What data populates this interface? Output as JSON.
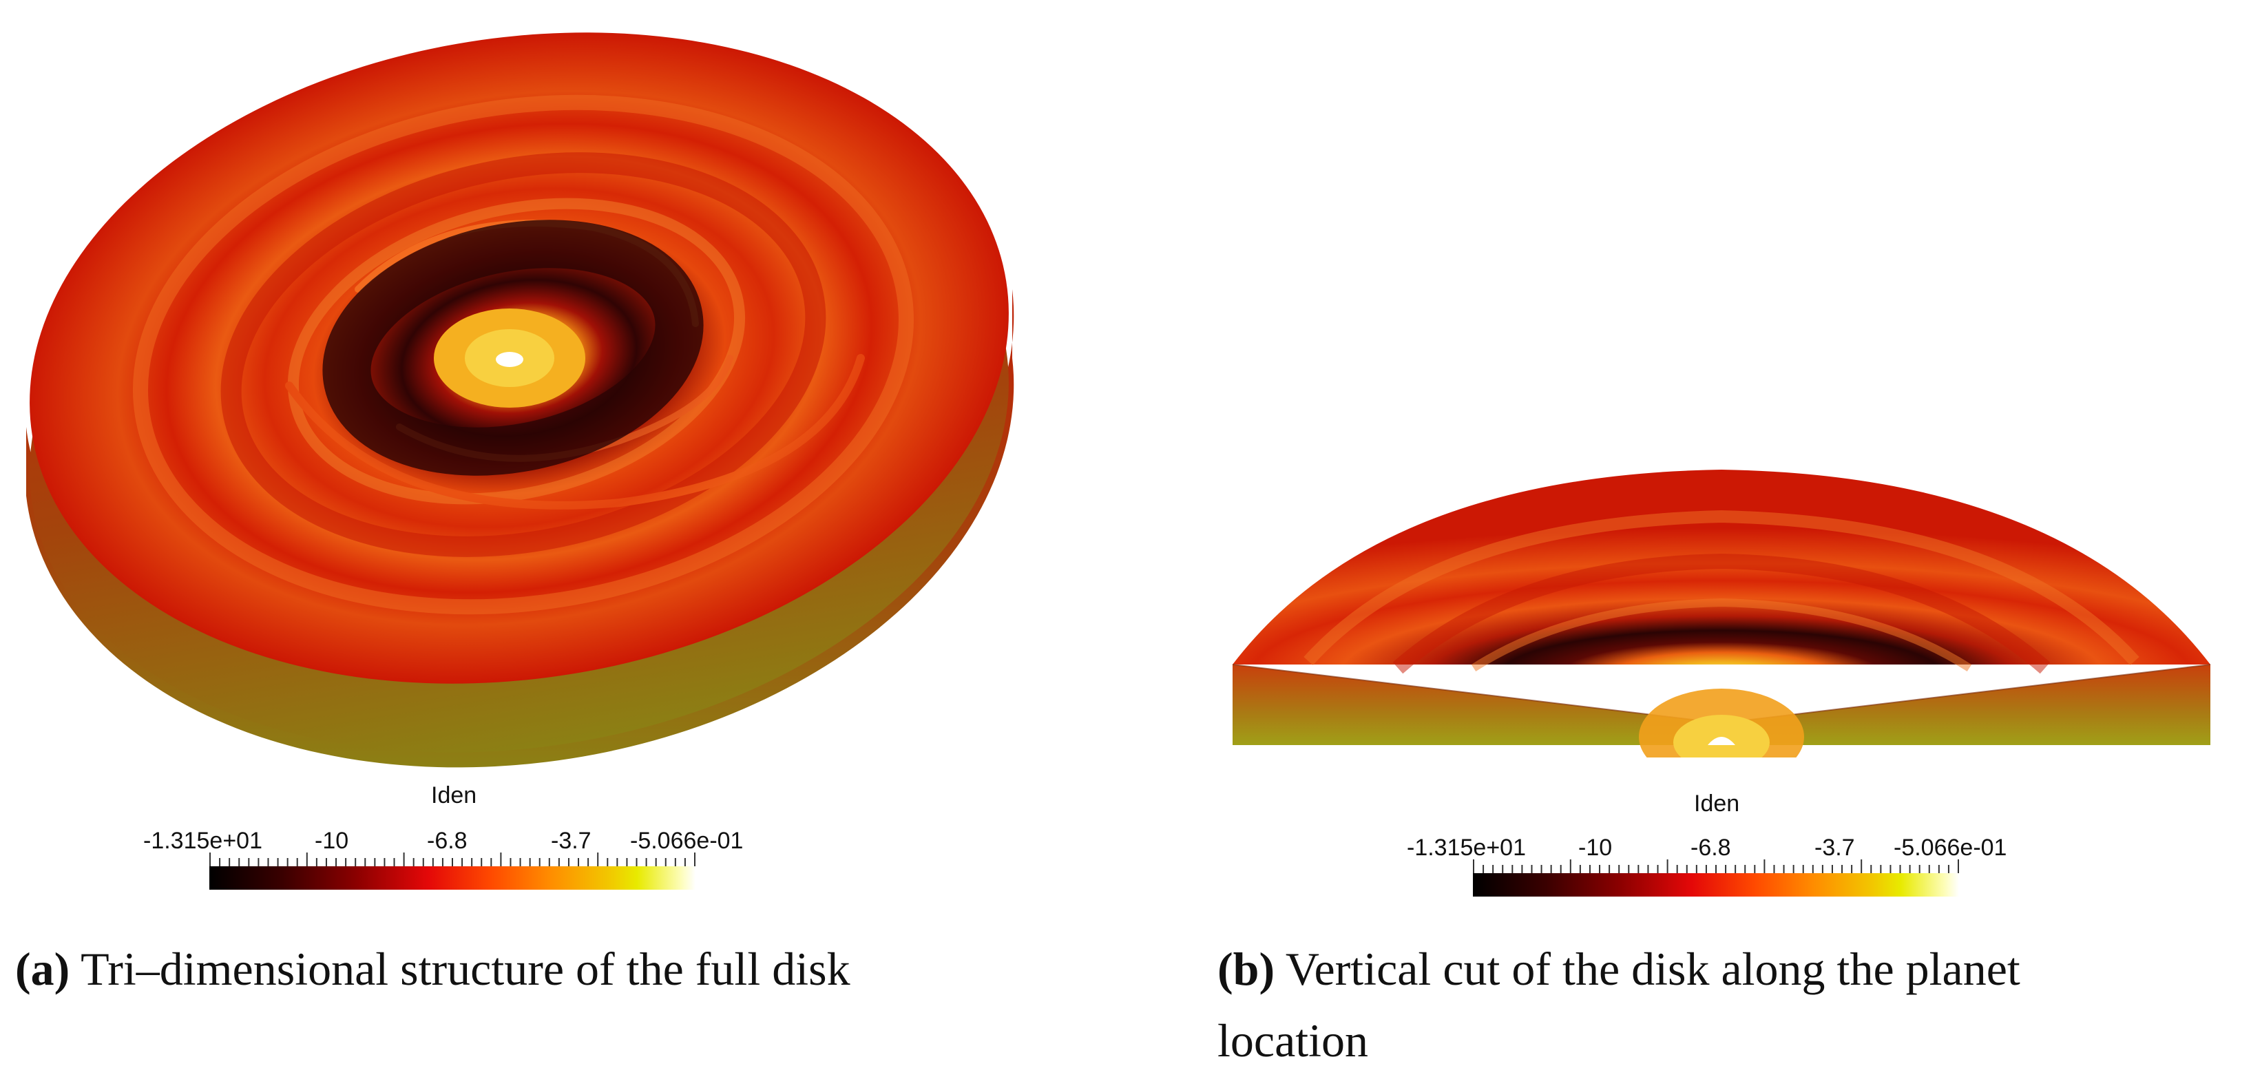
{
  "colorbar": {
    "title": "Iden",
    "ticks": [
      "-1.315e+01",
      "-10",
      "-6.8",
      "-3.7",
      "-5.066e-01"
    ],
    "colormap": [
      "#000000",
      "#8a0000",
      "#e40808",
      "#ff8c00",
      "#e8ea00",
      "#ffffff"
    ]
  },
  "panel_a": {
    "tag": "(a)",
    "caption": "Tri–dimensional structure of the full disk"
  },
  "panel_b": {
    "tag": "(b)",
    "caption_line1": "Vertical cut of the disk along the planet",
    "caption_line2": "location"
  },
  "colors": {
    "disk_outer": "#d01a04",
    "disk_mid": "#e8420a",
    "gap_dark": "#2a0404",
    "core": "#f7c020",
    "side_wall": "#9a8010"
  }
}
